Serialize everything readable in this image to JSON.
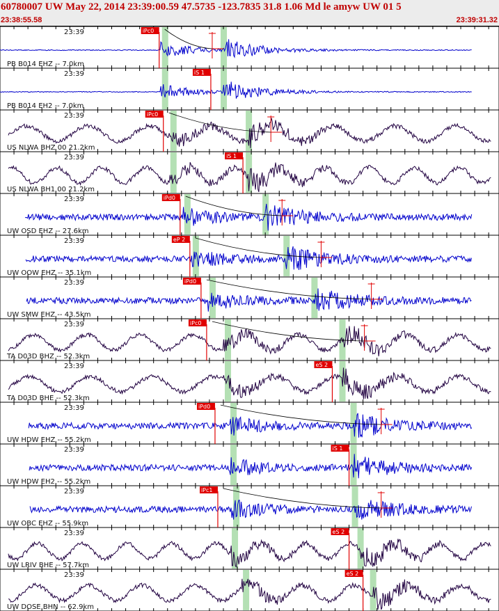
{
  "header": {
    "title": "60780007 UW May 22, 2014 23:39:00.59   47.5735 -123.7835 31.8 1.06 Md le amyw UW 01   5",
    "start_time": "23:38:55.58",
    "end_time": "23:39:31.32"
  },
  "colors": {
    "trace_blue": "#0000cc",
    "trace_dark": "#200040",
    "pick_red": "#e00000",
    "window_green": "#b4e0b4",
    "header_text": "#c00000"
  },
  "chart_data": {
    "type": "line",
    "chart_kind": "seismogram record section",
    "x_axis": {
      "units": "seconds",
      "range": [
        0,
        35.74
      ],
      "tick_interval_s": 1,
      "time_label": "23:39"
    },
    "traces": [
      {
        "label": "PB B014 EHZ -- 7.0km",
        "time_label": "23:39",
        "color": "blue",
        "pick": {
          "phase": "iPc0",
          "t": 11.4
        },
        "s_mark_t": 15.2,
        "windows_t": [
          11.8,
          16.0
        ]
      },
      {
        "label": "PB B014 EH2 -- 7.0km",
        "time_label": "23:39",
        "color": "blue",
        "pick": {
          "phase": "iS 1",
          "t": 15.1
        },
        "s_mark_t": null,
        "windows_t": [
          11.8,
          16.0
        ]
      },
      {
        "label": "US NLWA BHZ 00 21.2km",
        "time_label": "23:39",
        "color": "dark",
        "pick": {
          "phase": "iPc0",
          "t": 11.7
        },
        "s_mark_t": 19.4,
        "windows_t": [
          12.4,
          17.8
        ]
      },
      {
        "label": "US NLWA BH1 00 21.2km",
        "time_label": "23:39",
        "color": "dark",
        "pick": {
          "phase": "iS 1",
          "t": 17.4
        },
        "s_mark_t": null,
        "windows_t": [
          12.4,
          17.8
        ]
      },
      {
        "label": "UW OSD EHZ -- 27.6km",
        "time_label": "23:39",
        "color": "blue",
        "pick": {
          "phase": "iPd0",
          "t": 12.9
        },
        "s_mark_t": 20.2,
        "windows_t": [
          13.4,
          19.0
        ]
      },
      {
        "label": "UW OOW EHZ -- 35.1km",
        "time_label": "23:39",
        "color": "blue",
        "pick": {
          "phase": "eP 2",
          "t": 13.6
        },
        "s_mark_t": 23.0,
        "windows_t": [
          14.0,
          20.5
        ]
      },
      {
        "label": "UW SMW EHZ -- 43.5km",
        "time_label": "23:39",
        "color": "blue",
        "pick": {
          "phase": "iPd0",
          "t": 14.4
        },
        "s_mark_t": 26.6,
        "windows_t": [
          15.2,
          22.5
        ]
      },
      {
        "label": "TA D03D BHZ -- 52.3km",
        "time_label": "23:39",
        "color": "dark",
        "pick": {
          "phase": "iPc0",
          "t": 14.8
        },
        "s_mark_t": 26.1,
        "windows_t": [
          16.3,
          24.5
        ]
      },
      {
        "label": "TA D03D BHE -- 52.3km",
        "time_label": "23:39",
        "color": "dark",
        "pick": {
          "phase": "eS 2",
          "t": 23.8
        },
        "s_mark_t": null,
        "windows_t": [
          16.3,
          24.5
        ]
      },
      {
        "label": "UW HDW EHZ -- 55.2km",
        "time_label": "23:39",
        "color": "blue",
        "pick": {
          "phase": "iPd0",
          "t": 15.4
        },
        "s_mark_t": 27.3,
        "windows_t": [
          16.7,
          25.3
        ]
      },
      {
        "label": "UW HDW EH2 -- 55.2km",
        "time_label": "23:39",
        "color": "blue",
        "pick": {
          "phase": "iS 1",
          "t": 25.0
        },
        "s_mark_t": null,
        "windows_t": [
          16.7,
          25.3
        ]
      },
      {
        "label": "UW OBC EHZ -- 55.9km",
        "time_label": "23:39",
        "color": "blue",
        "pick": {
          "phase": "iPc1",
          "t": 15.6
        },
        "s_mark_t": 27.3,
        "windows_t": [
          16.9,
          25.4
        ]
      },
      {
        "label": "UW LRIV BHE -- 57.7km",
        "time_label": "23:39",
        "color": "dark",
        "pick": {
          "phase": "eS 2",
          "t": 25.0
        },
        "s_mark_t": null,
        "windows_t": [
          16.8,
          25.8
        ]
      },
      {
        "label": "UW DOSE BHN -- 62.9km",
        "time_label": "23:39",
        "color": "dark",
        "pick": {
          "phase": "eS 2",
          "t": 26.0
        },
        "s_mark_t": null,
        "windows_t": [
          17.6,
          26.7
        ]
      }
    ]
  }
}
